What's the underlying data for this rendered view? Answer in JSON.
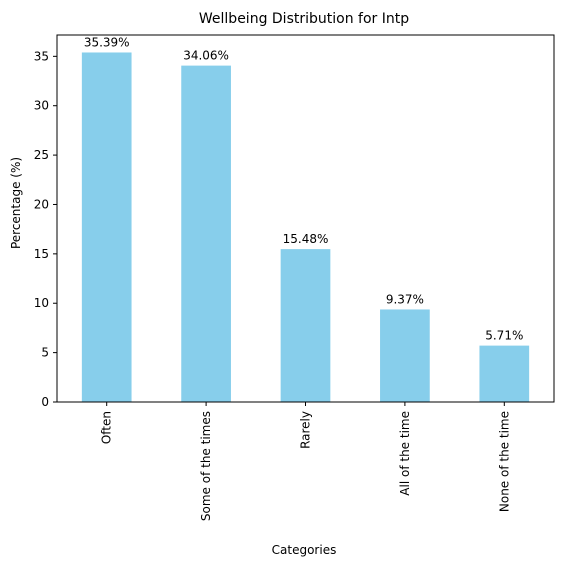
{
  "chart_data": {
    "type": "bar",
    "title": "Wellbeing Distribution for Intp",
    "xlabel": "Categories",
    "ylabel": "Percentage (%)",
    "categories": [
      "Often",
      "Some of the times",
      "Rarely",
      "All of the time",
      "None of the time"
    ],
    "values": [
      35.39,
      34.06,
      15.48,
      9.37,
      5.71
    ],
    "data_labels": [
      "35.39%",
      "34.06%",
      "15.48%",
      "9.37%",
      "5.71%"
    ],
    "yticks": [
      "0",
      "5",
      "10",
      "15",
      "20",
      "25",
      "30",
      "35"
    ],
    "ylim": [
      0,
      37.16
    ],
    "grid": false,
    "bar_color": "#87CEEB",
    "x_tick_rotation": "vertical"
  }
}
